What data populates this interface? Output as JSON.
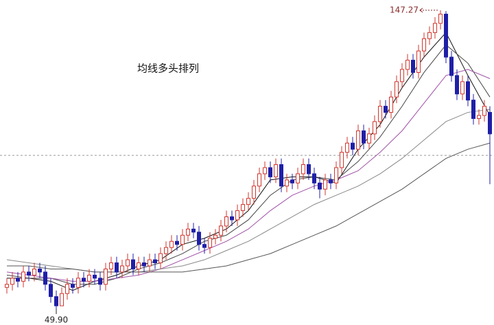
{
  "chart_data": {
    "type": "candlestick",
    "title": "均线多头排列",
    "xlim": [
      -1.25,
      88.75
    ],
    "ylim": [
      44.75,
      150.6
    ],
    "up_color": "#d0342c",
    "down_color": "#1f1fa8",
    "hline": 100,
    "open": [
      57,
      58,
      60,
      59,
      62,
      61,
      63,
      62,
      58,
      54,
      51,
      55,
      58,
      57,
      60,
      59,
      61,
      60,
      58,
      63,
      65,
      62,
      64,
      66,
      63,
      65,
      64,
      66,
      65,
      68,
      70,
      72,
      71,
      74,
      76,
      75,
      71,
      70,
      73,
      74,
      77,
      80,
      79,
      82,
      84,
      86,
      90,
      94,
      96,
      93,
      97,
      90,
      92,
      91,
      94,
      97,
      94,
      91,
      89,
      92,
      91,
      96,
      101,
      104,
      102,
      108,
      104,
      107,
      111,
      116,
      114,
      119,
      124,
      128,
      131,
      127,
      134,
      138,
      140,
      143,
      146,
      132,
      126,
      120,
      124,
      118,
      112,
      113,
      114
    ],
    "high": [
      60,
      62,
      62,
      64,
      64,
      65,
      65,
      64,
      60,
      56,
      57,
      60,
      60,
      62,
      62,
      63,
      63,
      62,
      65,
      67,
      67,
      66,
      68,
      68,
      67,
      67,
      68,
      68,
      70,
      72,
      74,
      74,
      76,
      78,
      78,
      77,
      73,
      75,
      76,
      79,
      82,
      82,
      84,
      86,
      88,
      92,
      96,
      98,
      98,
      99,
      99,
      94,
      94,
      96,
      99,
      99,
      96,
      93,
      94,
      94,
      98,
      103,
      106,
      106,
      110,
      110,
      109,
      113,
      118,
      118,
      121,
      126,
      130,
      133,
      133,
      136,
      140,
      142,
      145,
      147.27,
      147,
      134,
      128,
      126,
      126,
      120,
      115,
      118,
      116
    ],
    "low": [
      55,
      56,
      57,
      57,
      59,
      59,
      60,
      56,
      52,
      49.9,
      51,
      53,
      55,
      55,
      57,
      57,
      58,
      56,
      56,
      61,
      60,
      60,
      62,
      61,
      61,
      62,
      62,
      63,
      63,
      66,
      68,
      69,
      69,
      72,
      73,
      69,
      68,
      68,
      71,
      72,
      75,
      77,
      77,
      80,
      82,
      84,
      88,
      92,
      91,
      91,
      88,
      88,
      89,
      89,
      92,
      92,
      89,
      86,
      87,
      89,
      89,
      94,
      99,
      100,
      100,
      102,
      102,
      105,
      109,
      112,
      112,
      117,
      122,
      126,
      125,
      125,
      132,
      136,
      138,
      141,
      130,
      124,
      118,
      118,
      116,
      110,
      110,
      111,
      90.6
    ],
    "close": [
      58,
      60,
      59,
      62,
      61,
      63,
      62,
      58,
      54,
      51,
      55,
      58,
      57,
      60,
      59,
      61,
      60,
      58,
      63,
      65,
      62,
      64,
      66,
      63,
      65,
      64,
      66,
      65,
      68,
      70,
      72,
      71,
      74,
      76,
      75,
      71,
      70,
      73,
      74,
      77,
      80,
      79,
      82,
      84,
      86,
      90,
      94,
      96,
      93,
      97,
      90,
      92,
      91,
      94,
      97,
      94,
      91,
      89,
      92,
      91,
      96,
      101,
      104,
      102,
      108,
      104,
      107,
      111,
      116,
      114,
      119,
      124,
      128,
      131,
      127,
      134,
      138,
      140,
      143,
      146,
      132,
      126,
      120,
      124,
      118,
      112,
      113,
      116,
      107
    ],
    "series": [
      {
        "color": "#111111",
        "x": [
          0,
          4,
          8,
          12,
          16,
          20,
          24,
          28,
          32,
          36,
          40,
          44,
          48,
          52,
          56,
          60,
          64,
          68,
          72,
          76,
          80,
          84,
          88
        ],
        "values": [
          60,
          60,
          59,
          56,
          59,
          61,
          64,
          66,
          71,
          73,
          76,
          82,
          92,
          93,
          93,
          91,
          102,
          110,
          122,
          132,
          140,
          126,
          113
        ]
      },
      {
        "color": "#444444",
        "x": [
          0,
          4,
          8,
          12,
          16,
          20,
          24,
          28,
          32,
          36,
          40,
          44,
          48,
          52,
          56,
          60,
          64,
          68,
          72,
          76,
          80,
          84,
          88
        ],
        "values": [
          61,
          60,
          60,
          58,
          58,
          60,
          63,
          65,
          68,
          72,
          74,
          79,
          87,
          92,
          93,
          92,
          98,
          106,
          116,
          127,
          136,
          130,
          119
        ]
      },
      {
        "color": "#a050a8",
        "x": [
          0,
          4,
          8,
          12,
          16,
          20,
          24,
          28,
          32,
          36,
          40,
          44,
          48,
          52,
          56,
          60,
          64,
          68,
          72,
          76,
          80,
          84,
          88
        ],
        "values": [
          62,
          61,
          60,
          59,
          59,
          60,
          61,
          63,
          66,
          69,
          72,
          76,
          82,
          87,
          90,
          92,
          95,
          101,
          108,
          117,
          126,
          128,
          125
        ]
      },
      {
        "color": "#888888",
        "x": [
          0,
          4,
          8,
          12,
          16,
          20,
          24,
          28,
          32,
          36,
          40,
          44,
          48,
          52,
          56,
          60,
          64,
          68,
          72,
          76,
          80,
          84,
          88
        ],
        "values": [
          66,
          65,
          64,
          63,
          62,
          62,
          62,
          63,
          64,
          66,
          69,
          72,
          76,
          80,
          84,
          87,
          90,
          94,
          99,
          105,
          111,
          114,
          115
        ]
      },
      {
        "color": "#555555",
        "x": [
          0,
          4,
          8,
          12,
          16,
          20,
          24,
          28,
          32,
          36,
          40,
          44,
          48,
          52,
          56,
          60,
          64,
          68,
          72,
          76,
          80,
          84,
          88
        ],
        "values": [
          64,
          64,
          63,
          63,
          62,
          62,
          62,
          62,
          62,
          63,
          64,
          66,
          68,
          71,
          74,
          77,
          81,
          85,
          89,
          94,
          99,
          102,
          104
        ]
      }
    ],
    "annotations": [
      {
        "text": "147.27",
        "x": 79,
        "y": 147.27
      },
      {
        "text": "49.90",
        "x": 9,
        "y": 49.9
      }
    ]
  }
}
